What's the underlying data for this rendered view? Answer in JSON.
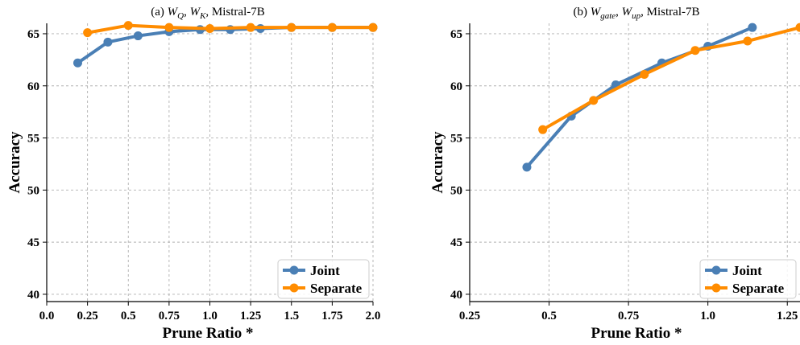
{
  "chart_data": [
    {
      "type": "line",
      "title": "(a) W_Q, W_K, Mistral-7B",
      "title_parts": {
        "prefix": "(a) ",
        "m1": "W",
        "s1": "Q",
        "sep": ", ",
        "m2": "W",
        "s2": "K",
        "suffix": ", Mistral-7B"
      },
      "xlabel": "Prune Ratio *",
      "ylabel": "Accuracy",
      "xlim": [
        0.0,
        2.0
      ],
      "ylim": [
        39.3,
        66
      ],
      "xticks": [
        "0.0",
        "0.25",
        "0.5",
        "0.75",
        "1.0",
        "1.25",
        "1.5",
        "1.75",
        "2.0"
      ],
      "yticks": [
        "40",
        "45",
        "50",
        "55",
        "60",
        "65"
      ],
      "grid": true,
      "legend_position": "lower-right",
      "series": [
        {
          "name": "Joint",
          "color": "#4a7fb5",
          "x": [
            0.19,
            0.375,
            0.56,
            0.75,
            0.94,
            1.125,
            1.31,
            1.5,
            1.75,
            2.0
          ],
          "y": [
            62.2,
            64.2,
            64.8,
            65.2,
            65.4,
            65.4,
            65.5,
            65.6,
            65.6,
            65.6
          ]
        },
        {
          "name": "Separate",
          "color": "#ff8c00",
          "x": [
            0.25,
            0.5,
            0.75,
            1.0,
            1.25,
            1.5,
            1.75,
            2.0
          ],
          "y": [
            65.1,
            65.8,
            65.6,
            65.5,
            65.6,
            65.6,
            65.6,
            65.6
          ]
        }
      ]
    },
    {
      "type": "line",
      "title": "(b) W_gate, W_up, Mistral-7B",
      "title_parts": {
        "prefix": "(b) ",
        "m1": "W",
        "s1": "gate",
        "sep": ", ",
        "m2": "W",
        "s2": "up",
        "suffix": ", Mistral-7B"
      },
      "xlabel": "Prune Ratio *",
      "ylabel": "Accuracy",
      "xlim": [
        0.25,
        1.29
      ],
      "ylim": [
        39.3,
        66
      ],
      "xticks": [
        "0.25",
        "0.5",
        "0.75",
        "1.0",
        "1.25"
      ],
      "yticks": [
        "40",
        "45",
        "50",
        "55",
        "60",
        "65"
      ],
      "grid": true,
      "legend_position": "lower-right",
      "series": [
        {
          "name": "Joint",
          "color": "#4a7fb5",
          "x": [
            0.43,
            0.57,
            0.71,
            0.855,
            1.0,
            1.14
          ],
          "y": [
            52.2,
            57.1,
            60.1,
            62.2,
            63.8,
            65.6
          ]
        },
        {
          "name": "Separate",
          "color": "#ff8c00",
          "x": [
            0.48,
            0.64,
            0.8,
            0.96,
            1.125,
            1.29
          ],
          "y": [
            55.8,
            58.6,
            61.1,
            63.4,
            64.3,
            65.6
          ]
        }
      ]
    }
  ]
}
